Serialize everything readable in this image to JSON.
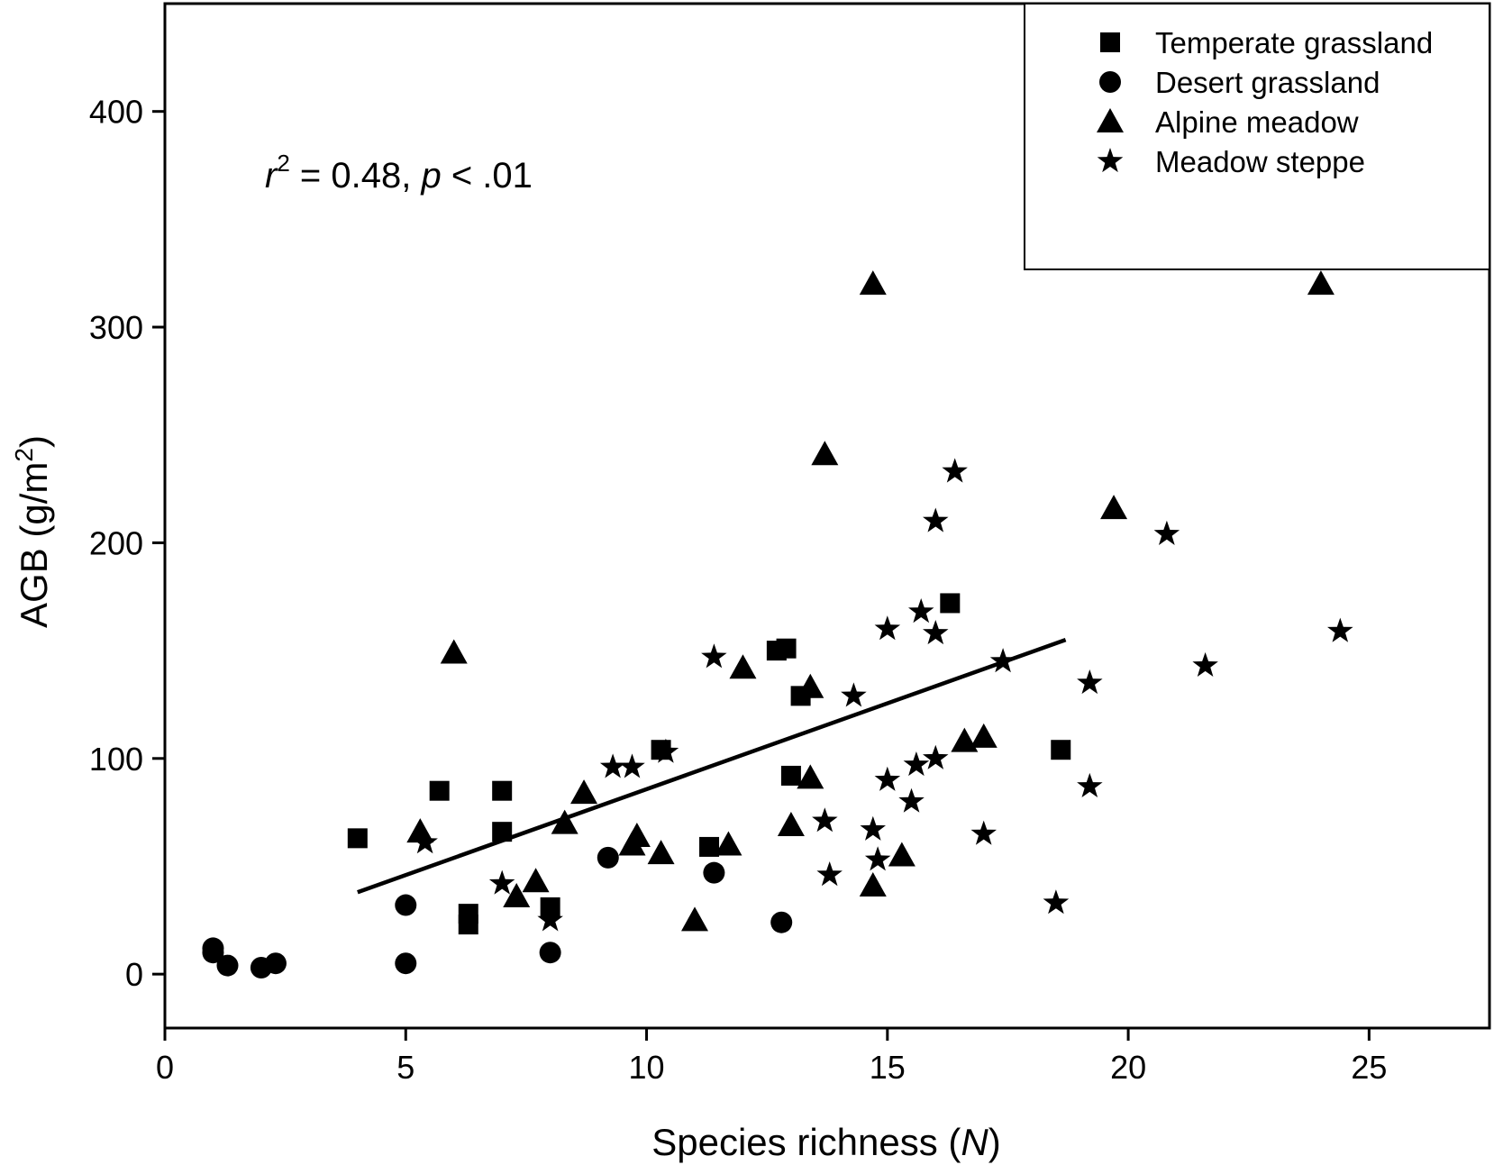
{
  "chart_data": {
    "type": "scatter",
    "title": "",
    "xlabel": "Species richness",
    "xlabel_var": "N",
    "ylabel": "AGB (g/m",
    "ylabel_sup": "2",
    "ylabel_end": ")",
    "xlim": [
      0,
      27.5
    ],
    "ylim": [
      -25,
      450
    ],
    "xticks": [
      0,
      5,
      10,
      15,
      20,
      25
    ],
    "yticks": [
      0,
      100,
      200,
      300,
      400
    ],
    "grid": false,
    "legend_position": "top-right",
    "annotation": {
      "r_symbol": "r",
      "r_sup": "2",
      "r_value": " = 0.48, ",
      "p_symbol": "p",
      "p_value": " < .01"
    },
    "series": [
      {
        "name": "Temperate grassland",
        "marker": "square",
        "points": [
          [
            4.0,
            63
          ],
          [
            5.7,
            85
          ],
          [
            6.3,
            28
          ],
          [
            6.3,
            23
          ],
          [
            7.0,
            85
          ],
          [
            7.0,
            66
          ],
          [
            8.0,
            31
          ],
          [
            10.3,
            104
          ],
          [
            11.3,
            59
          ],
          [
            12.7,
            150
          ],
          [
            12.9,
            151
          ],
          [
            13.2,
            129
          ],
          [
            13.0,
            92
          ],
          [
            16.3,
            172
          ],
          [
            18.6,
            104
          ]
        ]
      },
      {
        "name": "Desert grassland",
        "marker": "circle",
        "points": [
          [
            1.0,
            12
          ],
          [
            1.0,
            10
          ],
          [
            1.3,
            4
          ],
          [
            2.0,
            3
          ],
          [
            2.3,
            5
          ],
          [
            5.0,
            32
          ],
          [
            5.0,
            5
          ],
          [
            8.0,
            10
          ],
          [
            9.2,
            54
          ],
          [
            11.4,
            47
          ],
          [
            12.8,
            24
          ]
        ]
      },
      {
        "name": "Alpine meadow",
        "marker": "triangle",
        "points": [
          [
            5.3,
            66
          ],
          [
            6.0,
            149
          ],
          [
            7.3,
            36
          ],
          [
            7.7,
            43
          ],
          [
            8.3,
            70
          ],
          [
            8.7,
            84
          ],
          [
            9.7,
            60
          ],
          [
            9.8,
            64
          ],
          [
            10.3,
            56
          ],
          [
            11.0,
            25
          ],
          [
            11.7,
            60
          ],
          [
            12.0,
            142
          ],
          [
            13.0,
            69
          ],
          [
            13.4,
            133
          ],
          [
            13.4,
            91
          ],
          [
            13.7,
            241
          ],
          [
            14.7,
            320
          ],
          [
            14.7,
            41
          ],
          [
            15.3,
            55
          ],
          [
            16.6,
            108
          ],
          [
            17.0,
            110
          ],
          [
            19.7,
            216
          ],
          [
            24.0,
            320
          ]
        ]
      },
      {
        "name": "Meadow steppe",
        "marker": "star",
        "points": [
          [
            5.4,
            61
          ],
          [
            7.0,
            42
          ],
          [
            8.0,
            25
          ],
          [
            9.3,
            96
          ],
          [
            9.7,
            96
          ],
          [
            10.4,
            103
          ],
          [
            11.4,
            147
          ],
          [
            13.7,
            71
          ],
          [
            13.8,
            46
          ],
          [
            14.3,
            129
          ],
          [
            14.7,
            67
          ],
          [
            14.8,
            53
          ],
          [
            15.0,
            160
          ],
          [
            15.0,
            90
          ],
          [
            15.5,
            80
          ],
          [
            15.6,
            97
          ],
          [
            15.7,
            168
          ],
          [
            16.0,
            210
          ],
          [
            16.0,
            158
          ],
          [
            16.0,
            100
          ],
          [
            16.4,
            233
          ],
          [
            17.0,
            65
          ],
          [
            17.4,
            145
          ],
          [
            18.5,
            33
          ],
          [
            19.2,
            135
          ],
          [
            19.2,
            87
          ],
          [
            20.8,
            204
          ],
          [
            21.6,
            143
          ],
          [
            24.4,
            159
          ]
        ]
      }
    ],
    "regression": {
      "x": [
        4.0,
        18.7
      ],
      "y": [
        38,
        155
      ]
    }
  }
}
